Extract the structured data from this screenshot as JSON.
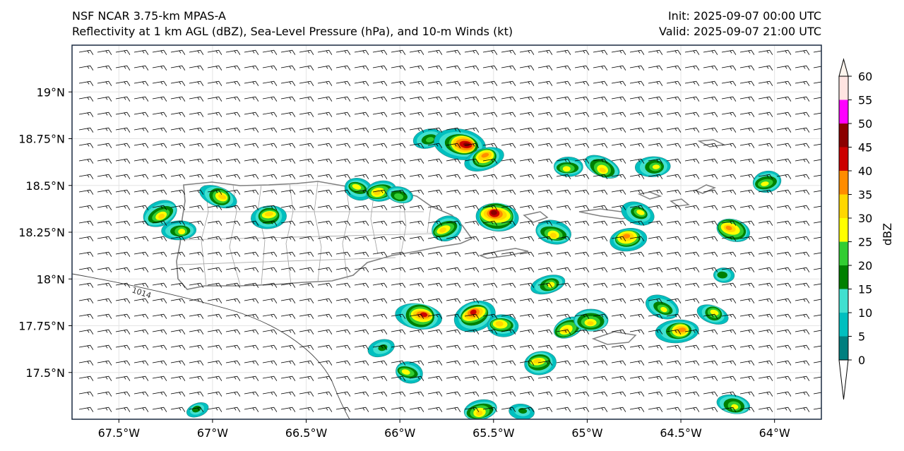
{
  "header": {
    "model": "NSF NCAR 3.75-km MPAS-A",
    "fields": "Reflectivity at 1 km AGL (dBZ), Sea-Level Pressure (hPa), and 10-m Winds (kt)",
    "init": "Init: 2025-09-07 00:00 UTC",
    "valid": "Valid: 2025-09-07 21:00 UTC"
  },
  "map": {
    "lon_range": [
      -67.75,
      -63.75
    ],
    "lat_range": [
      17.25,
      19.25
    ],
    "lon_ticks": [
      {
        "value": -67.5,
        "label": "67.5°W"
      },
      {
        "value": -67.0,
        "label": "67°W"
      },
      {
        "value": -66.5,
        "label": "66.5°W"
      },
      {
        "value": -66.0,
        "label": "66°W"
      },
      {
        "value": -65.5,
        "label": "65.5°W"
      },
      {
        "value": -65.0,
        "label": "65°W"
      },
      {
        "value": -64.5,
        "label": "64.5°W"
      },
      {
        "value": -64.0,
        "label": "64°W"
      }
    ],
    "lat_ticks": [
      {
        "value": 19.0,
        "label": "19°N"
      },
      {
        "value": 18.75,
        "label": "18.75°N"
      },
      {
        "value": 18.5,
        "label": "18.5°N"
      },
      {
        "value": 18.25,
        "label": "18.25°N"
      },
      {
        "value": 18.0,
        "label": "18°N"
      },
      {
        "value": 17.75,
        "label": "17.75°N"
      },
      {
        "value": 17.5,
        "label": "17.5°N"
      }
    ],
    "isobar_label": "1014",
    "wind": {
      "direction_from_deg": 80,
      "speed_kt": 15
    },
    "storm_cells": [
      {
        "lon": -67.28,
        "lat": 18.35,
        "dbz": 30
      },
      {
        "lon": -67.18,
        "lat": 18.26,
        "dbz": 25
      },
      {
        "lon": -66.97,
        "lat": 18.44,
        "dbz": 30
      },
      {
        "lon": -66.7,
        "lat": 18.33,
        "dbz": 30
      },
      {
        "lon": -66.22,
        "lat": 18.48,
        "dbz": 25
      },
      {
        "lon": -66.1,
        "lat": 18.47,
        "dbz": 30
      },
      {
        "lon": -66.0,
        "lat": 18.45,
        "dbz": 20
      },
      {
        "lon": -65.85,
        "lat": 18.75,
        "dbz": 20
      },
      {
        "lon": -65.68,
        "lat": 18.72,
        "dbz": 45
      },
      {
        "lon": -65.55,
        "lat": 18.64,
        "dbz": 35
      },
      {
        "lon": -65.48,
        "lat": 18.33,
        "dbz": 45
      },
      {
        "lon": -65.75,
        "lat": 18.27,
        "dbz": 30
      },
      {
        "lon": -65.1,
        "lat": 18.6,
        "dbz": 25
      },
      {
        "lon": -64.92,
        "lat": 18.6,
        "dbz": 30
      },
      {
        "lon": -64.65,
        "lat": 18.6,
        "dbz": 25
      },
      {
        "lon": -64.73,
        "lat": 18.35,
        "dbz": 25
      },
      {
        "lon": -64.78,
        "lat": 18.21,
        "dbz": 35
      },
      {
        "lon": -64.22,
        "lat": 18.26,
        "dbz": 35
      },
      {
        "lon": -64.04,
        "lat": 18.52,
        "dbz": 25
      },
      {
        "lon": -65.18,
        "lat": 18.25,
        "dbz": 30
      },
      {
        "lon": -65.21,
        "lat": 17.97,
        "dbz": 25
      },
      {
        "lon": -65.9,
        "lat": 17.8,
        "dbz": 40
      },
      {
        "lon": -65.6,
        "lat": 17.8,
        "dbz": 40
      },
      {
        "lon": -65.45,
        "lat": 17.75,
        "dbz": 30
      },
      {
        "lon": -65.1,
        "lat": 17.74,
        "dbz": 30
      },
      {
        "lon": -64.98,
        "lat": 17.78,
        "dbz": 30
      },
      {
        "lon": -64.6,
        "lat": 17.85,
        "dbz": 25
      },
      {
        "lon": -64.52,
        "lat": 17.72,
        "dbz": 35
      },
      {
        "lon": -64.33,
        "lat": 17.81,
        "dbz": 25
      },
      {
        "lon": -65.25,
        "lat": 17.55,
        "dbz": 30
      },
      {
        "lon": -65.95,
        "lat": 17.5,
        "dbz": 25
      },
      {
        "lon": -65.57,
        "lat": 17.3,
        "dbz": 30
      },
      {
        "lon": -64.22,
        "lat": 17.33,
        "dbz": 25
      },
      {
        "lon": -66.1,
        "lat": 17.63,
        "dbz": 15
      },
      {
        "lon": -65.35,
        "lat": 17.29,
        "dbz": 15
      },
      {
        "lon": -67.08,
        "lat": 17.3,
        "dbz": 15
      },
      {
        "lon": -64.27,
        "lat": 18.02,
        "dbz": 15
      }
    ]
  },
  "colorbar": {
    "unit": "dBZ",
    "levels": [
      0,
      5,
      10,
      15,
      20,
      25,
      30,
      35,
      40,
      45,
      50,
      55,
      60
    ],
    "colors": [
      "#007f7f",
      "#00bfbf",
      "#40e0d0",
      "#008000",
      "#32cd32",
      "#ffff00",
      "#ffd700",
      "#ff8c00",
      "#cc0000",
      "#8b0000",
      "#ff00ff",
      "#ffe4e1"
    ]
  }
}
